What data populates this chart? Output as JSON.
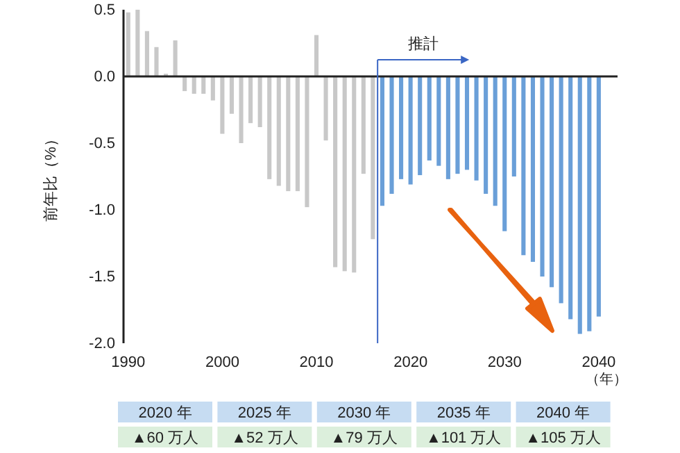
{
  "chart_data": {
    "type": "bar",
    "ylabel": "前年比（%）",
    "xlabel": "（年）",
    "xlim": [
      1989.5,
      2042
    ],
    "xticks": [
      1990,
      2000,
      2010,
      2020,
      2030,
      2040
    ],
    "ylim": [
      -2.0,
      0.5
    ],
    "yticks": [
      {
        "value": -2,
        "label": "-2.0"
      },
      {
        "value": -1.5,
        "label": "-1.5"
      },
      {
        "value": -1,
        "label": "-1.0"
      },
      {
        "value": -0.5,
        "label": "-0.5"
      },
      {
        "value": 0,
        "label": "0.0"
      },
      {
        "value": 0.5,
        "label": "0.5"
      }
    ],
    "series": [
      {
        "color": "#c8c8c8",
        "x": [
          1990,
          1991,
          1992,
          1993,
          1994,
          1995,
          1996,
          1997,
          1998,
          1999,
          2000,
          2001,
          2002,
          2003,
          2004,
          2005,
          2006,
          2007,
          2008,
          2009,
          2010,
          2011,
          2012,
          2013,
          2014,
          2015,
          2016
        ],
        "values": [
          0.48,
          0.5,
          0.34,
          0.22,
          0.02,
          0.27,
          -0.11,
          -0.13,
          -0.13,
          -0.18,
          -0.43,
          -0.28,
          -0.5,
          -0.35,
          -0.38,
          -0.77,
          -0.82,
          -0.86,
          -0.86,
          -0.98,
          0.31,
          -0.48,
          -1.43,
          -1.46,
          -1.47,
          -0.73,
          -1.22
        ]
      },
      {
        "color": "#6a9fd8",
        "x": [
          2017,
          2018,
          2019,
          2020,
          2021,
          2022,
          2023,
          2024,
          2025,
          2026,
          2027,
          2028,
          2029,
          2030,
          2031,
          2032,
          2033,
          2034,
          2035,
          2036,
          2037,
          2038,
          2039,
          2040
        ],
        "values": [
          -0.97,
          -0.88,
          -0.77,
          -0.81,
          -0.74,
          -0.63,
          -0.67,
          -0.77,
          -0.73,
          -0.7,
          -0.78,
          -0.88,
          -0.97,
          -1.16,
          -0.75,
          -1.34,
          -1.39,
          -1.5,
          -1.58,
          -1.7,
          -1.82,
          -1.93,
          -1.91,
          -1.8
        ]
      }
    ],
    "ref_lines": [
      {
        "axis": "x",
        "value": 2016.5,
        "label": "推計",
        "color": "#3a66c4"
      }
    ],
    "annotations": [
      "2020 年",
      "▲60 万人",
      "2025 年",
      "▲52 万人",
      "2030 年",
      "▲79 万人",
      "2035 年",
      "▲101 万人",
      "2040 年",
      "▲105 万人"
    ]
  }
}
